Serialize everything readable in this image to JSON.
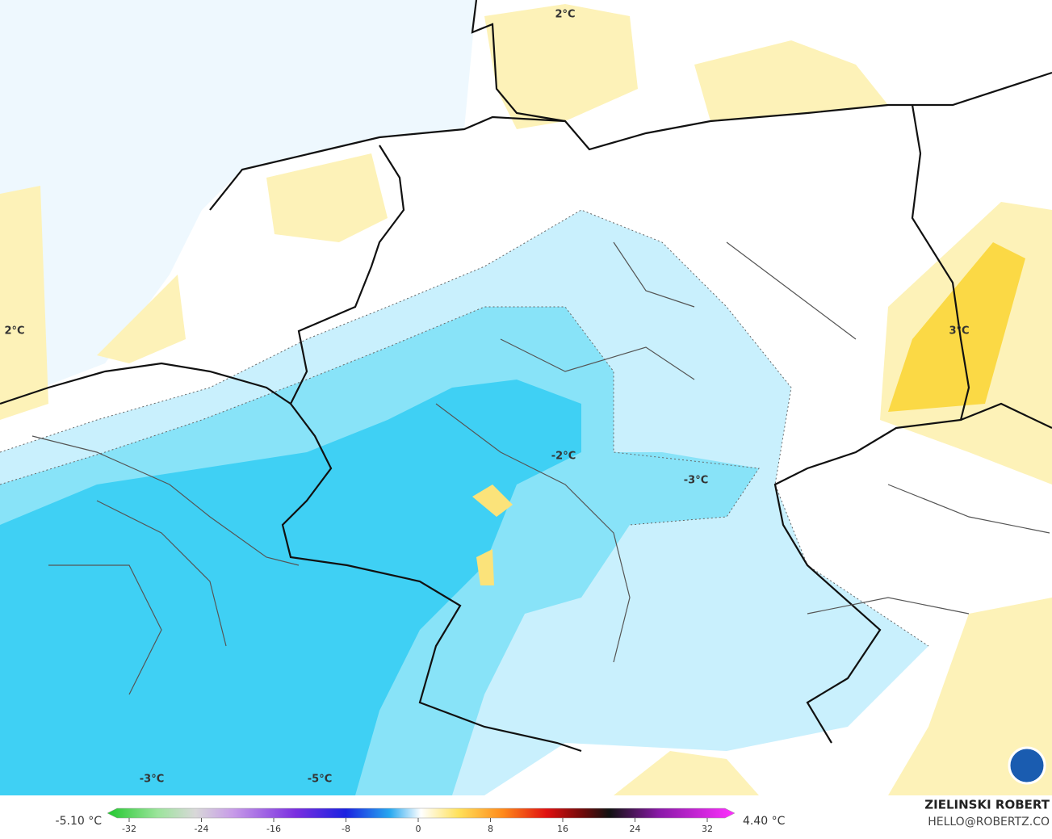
{
  "map": {
    "contour_labels": [
      "2°C",
      "2°C",
      "3°C",
      "-2°C",
      "-3°C",
      "-3°C",
      "-5°C"
    ],
    "colorbar": {
      "min_label": "-5.10 °C",
      "max_label": "4.40 °C",
      "ticks": [
        -32,
        -24,
        -16,
        -8,
        0,
        8,
        16,
        24,
        32
      ]
    },
    "credit": {
      "author": "ZIELINSKI ROBERT",
      "contact": "HELLO@ROBERTZ.CO"
    }
  }
}
